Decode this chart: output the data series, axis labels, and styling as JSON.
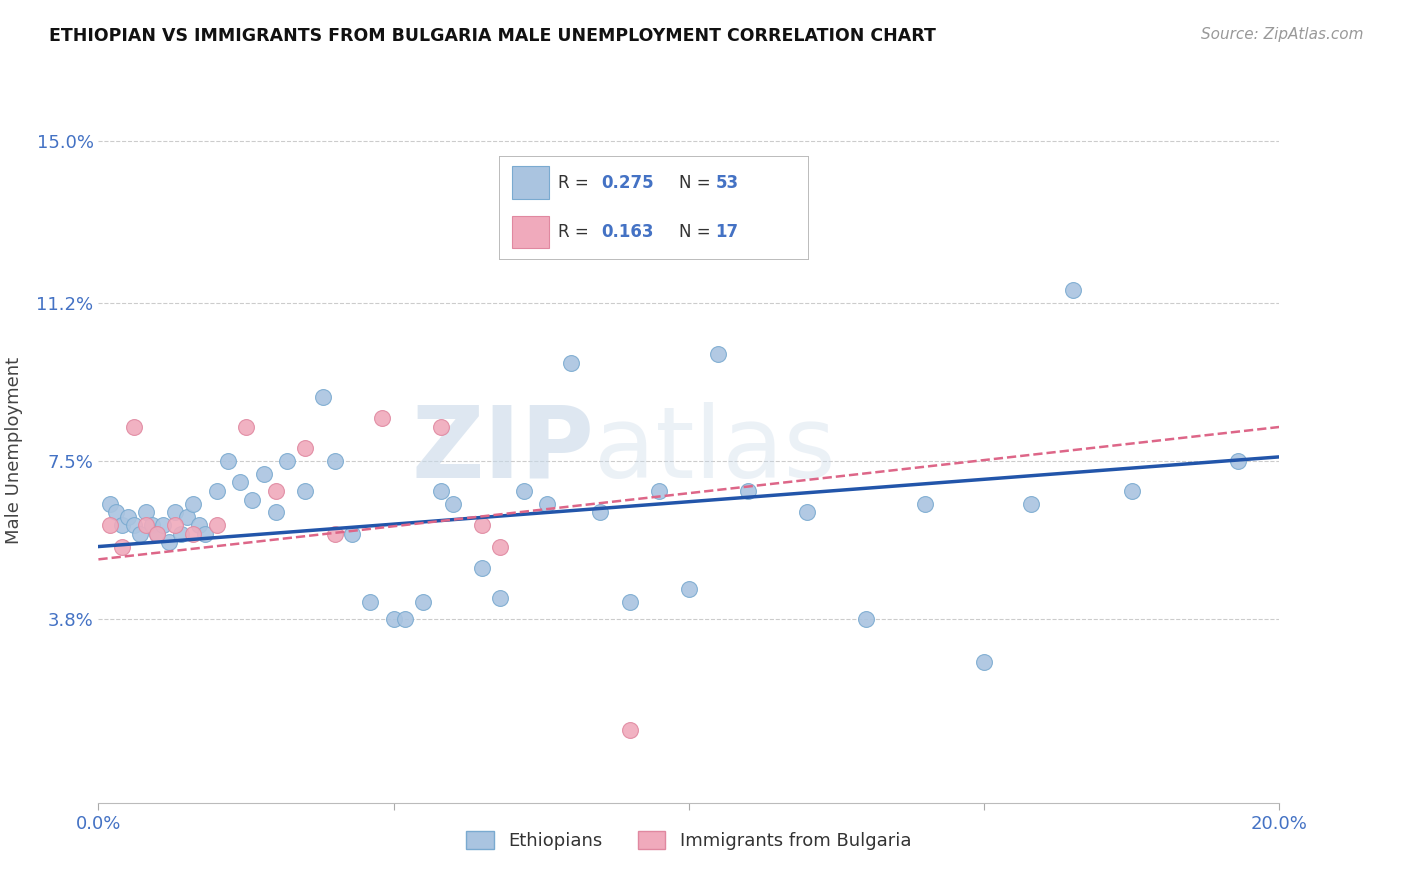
{
  "title": "ETHIOPIAN VS IMMIGRANTS FROM BULGARIA MALE UNEMPLOYMENT CORRELATION CHART",
  "source": "Source: ZipAtlas.com",
  "ylabel": "Male Unemployment",
  "xlim": [
    0.0,
    0.2
  ],
  "ylim": [
    -0.005,
    0.16
  ],
  "yticks": [
    0.038,
    0.075,
    0.112,
    0.15
  ],
  "ytick_labels": [
    "3.8%",
    "7.5%",
    "11.2%",
    "15.0%"
  ],
  "xticks": [
    0.0,
    0.05,
    0.1,
    0.15,
    0.2
  ],
  "xtick_labels": [
    "0.0%",
    "",
    "",
    "",
    "20.0%"
  ],
  "background_color": "#ffffff",
  "grid_color": "#cccccc",
  "ethiopians_color": "#aac4e0",
  "bulgaria_color": "#f0aabc",
  "trend_eth_color": "#2255aa",
  "trend_bul_color": "#dd6688",
  "watermark_zip": "ZIP",
  "watermark_atlas": "atlas",
  "legend_R_eth": "0.275",
  "legend_N_eth": "53",
  "legend_R_bul": "0.163",
  "legend_N_bul": "17",
  "eth_x": [
    0.002,
    0.003,
    0.004,
    0.005,
    0.006,
    0.007,
    0.008,
    0.009,
    0.01,
    0.011,
    0.012,
    0.013,
    0.014,
    0.015,
    0.016,
    0.017,
    0.018,
    0.02,
    0.022,
    0.024,
    0.026,
    0.028,
    0.03,
    0.032,
    0.035,
    0.038,
    0.04,
    0.043,
    0.046,
    0.05,
    0.052,
    0.055,
    0.058,
    0.06,
    0.065,
    0.068,
    0.072,
    0.076,
    0.08,
    0.085,
    0.09,
    0.095,
    0.1,
    0.105,
    0.11,
    0.12,
    0.13,
    0.14,
    0.15,
    0.158,
    0.165,
    0.175,
    0.193
  ],
  "eth_y": [
    0.065,
    0.063,
    0.06,
    0.062,
    0.06,
    0.058,
    0.063,
    0.06,
    0.058,
    0.06,
    0.056,
    0.063,
    0.058,
    0.062,
    0.065,
    0.06,
    0.058,
    0.068,
    0.075,
    0.07,
    0.066,
    0.072,
    0.063,
    0.075,
    0.068,
    0.09,
    0.075,
    0.058,
    0.042,
    0.038,
    0.038,
    0.042,
    0.068,
    0.065,
    0.05,
    0.043,
    0.068,
    0.065,
    0.098,
    0.063,
    0.042,
    0.068,
    0.045,
    0.1,
    0.068,
    0.063,
    0.038,
    0.065,
    0.028,
    0.065,
    0.115,
    0.068,
    0.075
  ],
  "bul_x": [
    0.002,
    0.004,
    0.006,
    0.008,
    0.01,
    0.013,
    0.016,
    0.02,
    0.025,
    0.03,
    0.035,
    0.04,
    0.048,
    0.058,
    0.065,
    0.068,
    0.09
  ],
  "bul_y": [
    0.06,
    0.055,
    0.083,
    0.06,
    0.058,
    0.06,
    0.058,
    0.06,
    0.083,
    0.068,
    0.078,
    0.058,
    0.085,
    0.083,
    0.06,
    0.055,
    0.012
  ],
  "eth_trend_x0": 0.0,
  "eth_trend_x1": 0.2,
  "eth_trend_y0": 0.055,
  "eth_trend_y1": 0.076,
  "bul_trend_x0": 0.0,
  "bul_trend_x1": 0.2,
  "bul_trend_y0": 0.052,
  "bul_trend_y1": 0.083
}
